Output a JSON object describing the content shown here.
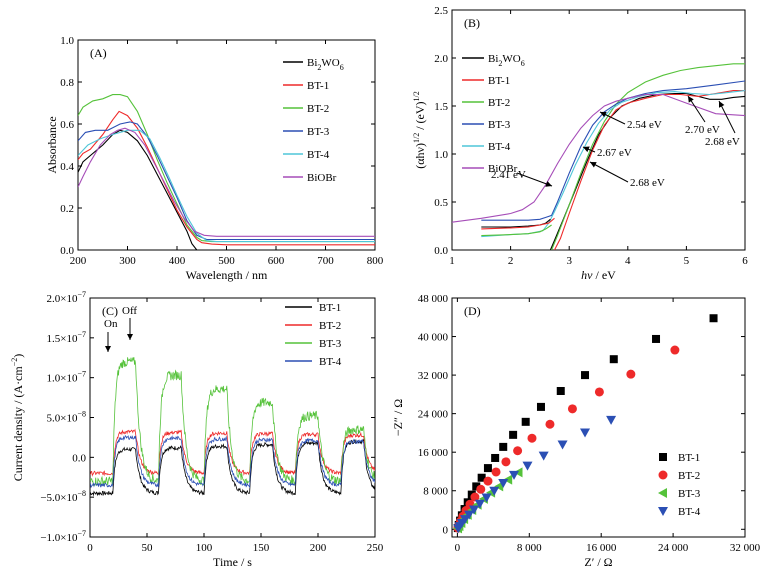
{
  "chart_data": [
    {
      "panel": "(A)",
      "type": "line",
      "xlabel": "Wavelength / nm",
      "ylabel": "Absorbance",
      "xlim": [
        200,
        800
      ],
      "ylim": [
        0,
        1.0
      ],
      "xticks": [
        200,
        300,
        400,
        500,
        600,
        700,
        800
      ],
      "yticks": [
        0,
        0.2,
        0.4,
        0.6,
        0.8,
        1.0
      ],
      "xtick_labels": [
        "200",
        "300",
        "400",
        "500",
        "600",
        "700",
        "800"
      ],
      "ytick_labels": [
        "0.0",
        "0.2",
        "0.4",
        "0.6",
        "0.8",
        "1.0"
      ],
      "legend": "top-right",
      "series": [
        {
          "name": "Bi2WO6",
          "color": "#000000",
          "x": [
            200,
            210,
            225,
            250,
            270,
            285,
            300,
            320,
            340,
            360,
            380,
            400,
            420,
            430,
            440
          ],
          "y": [
            0.37,
            0.42,
            0.45,
            0.5,
            0.55,
            0.57,
            0.56,
            0.52,
            0.45,
            0.36,
            0.27,
            0.18,
            0.09,
            0.03,
            0.0
          ]
        },
        {
          "name": "BT-1",
          "color": "#ee2a2a",
          "x": [
            200,
            210,
            225,
            250,
            270,
            283,
            300,
            320,
            340,
            360,
            380,
            400,
            420,
            440,
            450,
            470,
            500,
            600,
            700,
            800
          ],
          "y": [
            0.43,
            0.46,
            0.48,
            0.55,
            0.62,
            0.66,
            0.64,
            0.58,
            0.49,
            0.39,
            0.29,
            0.19,
            0.11,
            0.05,
            0.035,
            0.028,
            0.025,
            0.025,
            0.025,
            0.025
          ]
        },
        {
          "name": "BT-2",
          "color": "#55c23a",
          "x": [
            200,
            210,
            230,
            250,
            270,
            285,
            300,
            320,
            340,
            360,
            380,
            400,
            420,
            440,
            450,
            470,
            500,
            600,
            700,
            800
          ],
          "y": [
            0.64,
            0.68,
            0.71,
            0.72,
            0.74,
            0.74,
            0.73,
            0.66,
            0.55,
            0.43,
            0.32,
            0.22,
            0.12,
            0.06,
            0.045,
            0.04,
            0.04,
            0.04,
            0.04,
            0.04
          ]
        },
        {
          "name": "BT-3",
          "color": "#2b4fb4",
          "x": [
            200,
            215,
            235,
            260,
            285,
            305,
            320,
            340,
            360,
            380,
            400,
            420,
            440,
            460,
            480,
            500,
            600,
            700,
            800
          ],
          "y": [
            0.52,
            0.56,
            0.57,
            0.57,
            0.6,
            0.61,
            0.6,
            0.54,
            0.45,
            0.35,
            0.25,
            0.14,
            0.07,
            0.05,
            0.05,
            0.05,
            0.05,
            0.05,
            0.05
          ]
        },
        {
          "name": "BT-4",
          "color": "#4fc6d8",
          "x": [
            200,
            220,
            245,
            270,
            300,
            325,
            345,
            365,
            385,
            400,
            420,
            440,
            460,
            480,
            500,
            600,
            700,
            800
          ],
          "y": [
            0.45,
            0.5,
            0.53,
            0.55,
            0.57,
            0.57,
            0.53,
            0.44,
            0.34,
            0.26,
            0.16,
            0.08,
            0.045,
            0.04,
            0.04,
            0.04,
            0.04,
            0.04
          ]
        },
        {
          "name": "BiOBr",
          "color": "#a64db8",
          "x": [
            200,
            210,
            225,
            245,
            265,
            280,
            295,
            315,
            335,
            355,
            375,
            395,
            415,
            435,
            455,
            480,
            500,
            600,
            700,
            800
          ],
          "y": [
            0.3,
            0.35,
            0.42,
            0.5,
            0.55,
            0.57,
            0.58,
            0.56,
            0.5,
            0.41,
            0.32,
            0.23,
            0.15,
            0.09,
            0.07,
            0.065,
            0.065,
            0.065,
            0.065,
            0.065
          ]
        }
      ]
    },
    {
      "panel": "(B)",
      "type": "line",
      "xlabel": "hν / eV",
      "ylabel": "(αhν)1/2 / (eV)1/2",
      "xlim": [
        1,
        6
      ],
      "ylim": [
        0,
        2.5
      ],
      "xticks": [
        1,
        2,
        3,
        4,
        5,
        6
      ],
      "yticks": [
        0,
        0.5,
        1.0,
        1.5,
        2.0,
        2.5
      ],
      "xtick_labels": [
        "1",
        "2",
        "3",
        "4",
        "5",
        "6"
      ],
      "ytick_labels": [
        "0.0",
        "0.5",
        "1.0",
        "1.5",
        "2.0",
        "2.5"
      ],
      "legend": "top-left",
      "series": [
        {
          "name": "Bi2WO6",
          "color": "#000000",
          "x": [
            2.68,
            2.75,
            2.9,
            3.1,
            3.3,
            3.5,
            3.7,
            3.9,
            4.2,
            4.5,
            4.8,
            5.0,
            5.2,
            5.4,
            5.6,
            5.8,
            6.0
          ],
          "y": [
            0.0,
            0.1,
            0.32,
            0.62,
            0.92,
            1.2,
            1.38,
            1.5,
            1.58,
            1.62,
            1.63,
            1.63,
            1.6,
            1.57,
            1.57,
            1.59,
            1.6
          ]
        },
        {
          "name": "BT-1",
          "color": "#ee2a2a",
          "x": [
            2.75,
            2.85,
            3.0,
            3.2,
            3.4,
            3.6,
            3.8,
            4.0,
            4.3,
            4.6,
            4.9,
            5.2,
            5.5,
            5.8,
            6.0
          ],
          "y": [
            0.0,
            0.12,
            0.38,
            0.72,
            1.04,
            1.3,
            1.46,
            1.53,
            1.58,
            1.62,
            1.62,
            1.6,
            1.63,
            1.66,
            1.66
          ]
        },
        {
          "name": "BT-2",
          "color": "#55c23a",
          "x": [
            2.7,
            2.8,
            3.0,
            3.2,
            3.4,
            3.6,
            3.8,
            4.0,
            4.3,
            4.6,
            4.9,
            5.2,
            5.5,
            5.8,
            6.0
          ],
          "y": [
            0.0,
            0.15,
            0.47,
            0.8,
            1.1,
            1.34,
            1.52,
            1.64,
            1.75,
            1.82,
            1.87,
            1.9,
            1.92,
            1.94,
            1.94
          ]
        },
        {
          "name": "BT-3",
          "color": "#2b4fb4",
          "x": [
            1.5,
            2.0,
            2.3,
            2.5,
            2.6,
            2.7,
            2.8,
            3.0,
            3.2,
            3.4,
            3.6,
            3.8,
            4.0,
            4.3,
            4.6,
            5.0,
            5.5,
            6.0
          ],
          "y": [
            0.31,
            0.31,
            0.31,
            0.32,
            0.34,
            0.36,
            0.5,
            0.8,
            1.08,
            1.3,
            1.44,
            1.52,
            1.58,
            1.63,
            1.66,
            1.68,
            1.72,
            1.76
          ]
        },
        {
          "name": "BT-4",
          "color": "#4fc6d8",
          "x": [
            1.5,
            2.0,
            2.3,
            2.55,
            2.65,
            2.75,
            2.9,
            3.1,
            3.3,
            3.5,
            3.7,
            3.9,
            4.2,
            4.5,
            4.8,
            5.1,
            5.4,
            5.7,
            6.0
          ],
          "y": [
            0.14,
            0.16,
            0.17,
            0.2,
            0.28,
            0.4,
            0.6,
            0.88,
            1.12,
            1.32,
            1.46,
            1.54,
            1.6,
            1.64,
            1.65,
            1.63,
            1.62,
            1.64,
            1.66
          ]
        },
        {
          "name": "BiOBr",
          "color": "#a64db8",
          "x": [
            1.0,
            1.5,
            2.0,
            2.2,
            2.4,
            2.6,
            2.8,
            3.0,
            3.2,
            3.4,
            3.6,
            3.8,
            4.0,
            4.3,
            4.6,
            5.0,
            5.5,
            6.0
          ],
          "y": [
            0.29,
            0.33,
            0.38,
            0.42,
            0.5,
            0.68,
            0.9,
            1.1,
            1.27,
            1.4,
            1.5,
            1.55,
            1.58,
            1.62,
            1.62,
            1.53,
            1.42,
            1.4
          ]
        },
        {
          "name": "Bi2WO6 baseline",
          "color": "#000000",
          "x": [
            1.5,
            2.0,
            2.3,
            2.5,
            2.6,
            2.68
          ],
          "y": [
            0.24,
            0.24,
            0.25,
            0.26,
            0.28,
            0.32
          ]
        },
        {
          "name": "BT-1 baseline",
          "color": "#ee2a2a",
          "x": [
            1.5,
            2.0,
            2.3,
            2.5,
            2.65,
            2.75
          ],
          "y": [
            0.22,
            0.23,
            0.24,
            0.26,
            0.28,
            0.33
          ]
        },
        {
          "name": "BT-2 baseline",
          "color": "#55c23a",
          "x": [
            1.5,
            2.0,
            2.3,
            2.5,
            2.6,
            2.7
          ],
          "y": [
            0.15,
            0.16,
            0.17,
            0.19,
            0.22,
            0.26
          ]
        }
      ],
      "annotations": [
        "2.54 eV",
        "2.67 eV",
        "2.68 eV",
        "2.41 eV",
        "2.70 eV",
        "2.68 eV"
      ]
    },
    {
      "panel": "(C)",
      "type": "line",
      "xlabel": "Time / s",
      "ylabel": "Current density / (A·cm−2)",
      "xlim": [
        0,
        250
      ],
      "ylim": [
        -1e-07,
        2e-07
      ],
      "xticks": [
        0,
        50,
        100,
        150,
        200,
        250
      ],
      "yticks": [
        -1e-07,
        -5e-08,
        0,
        5e-08,
        1e-07,
        1.5e-07,
        2e-07
      ],
      "xtick_labels": [
        "0",
        "50",
        "100",
        "150",
        "200",
        "250"
      ],
      "ytick_labels": [
        "−1.0×10−7",
        "−5.0×10−8",
        "0.0",
        "5.0×10−8",
        "1.0×10−7",
        "1.5×10−7",
        "2.0×10−7"
      ],
      "legend": "top-right",
      "annotations": [
        "On",
        "Off"
      ],
      "light_on": [
        20,
        60,
        100,
        140,
        180,
        220
      ],
      "light_off": [
        40,
        80,
        120,
        160,
        200,
        240
      ],
      "series": [
        {
          "name": "BT-1",
          "color": "#000000",
          "dark": -4.5e-08,
          "light_start": 1e-08,
          "light_end": 2e-08
        },
        {
          "name": "BT-2",
          "color": "#ee2a2a",
          "dark": -2e-08,
          "light_start": 3.2e-08,
          "light_end": 2.8e-08
        },
        {
          "name": "BT-3",
          "color": "#55c23a",
          "dark": -3e-08,
          "light_start": 1.2e-07,
          "light_end": 3.5e-08
        },
        {
          "name": "BT-4",
          "color": "#2b4fb4",
          "dark": -3.5e-08,
          "light_start": 2.5e-08,
          "light_end": 2e-08
        }
      ]
    },
    {
      "panel": "(D)",
      "type": "scatter",
      "xlabel": "Z′ / Ω",
      "ylabel": "−Z″ / Ω",
      "xlim": [
        -600,
        32000
      ],
      "ylim": [
        -1600,
        48000
      ],
      "xticks": [
        0,
        8000,
        16000,
        24000,
        32000
      ],
      "yticks": [
        0,
        8000,
        16000,
        24000,
        32000,
        40000,
        48000
      ],
      "xtick_labels": [
        "0",
        "8 000",
        "16 000",
        "24 000",
        "32 000"
      ],
      "ytick_labels": [
        "0",
        "8 000",
        "16 000",
        "24 000",
        "32 000",
        "40 000",
        "48 000"
      ],
      "legend": "bottom-right",
      "series": [
        {
          "name": "BT-1",
          "color": "#000000",
          "marker": "square",
          "x": [
            50,
            150,
            300,
            500,
            800,
            1150,
            1600,
            2100,
            2700,
            3400,
            4200,
            5100,
            6200,
            7600,
            9300,
            11500,
            14200,
            17400,
            22100,
            28500
          ],
          "y": [
            250,
            900,
            1800,
            2900,
            4200,
            5600,
            7200,
            8900,
            10700,
            12700,
            14800,
            17100,
            19600,
            22300,
            25400,
            28700,
            32000,
            35300,
            39500,
            43800
          ]
        },
        {
          "name": "BT-2",
          "color": "#ee2a2a",
          "marker": "circle",
          "x": [
            60,
            180,
            360,
            600,
            950,
            1400,
            1950,
            2600,
            3400,
            4300,
            5400,
            6700,
            8300,
            10300,
            12800,
            15800,
            19300,
            24200
          ],
          "y": [
            250,
            850,
            1700,
            2700,
            3900,
            5200,
            6700,
            8300,
            10000,
            11900,
            14000,
            16300,
            18900,
            21800,
            25000,
            28500,
            32200,
            37200
          ]
        },
        {
          "name": "BT-3",
          "color": "#55c23a",
          "marker": "triangle-left",
          "x": [
            70,
            220,
            440,
            750,
            1150,
            1650,
            2250,
            2950,
            3750,
            4650,
            5650,
            6800
          ],
          "y": [
            200,
            650,
            1300,
            2100,
            3000,
            4000,
            5100,
            6300,
            7600,
            8900,
            10300,
            11800
          ]
        },
        {
          "name": "BT-4",
          "color": "#2b4fb4",
          "marker": "triangle-down",
          "x": [
            80,
            250,
            500,
            850,
            1300,
            1850,
            2500,
            3250,
            4100,
            5100,
            6300,
            7800,
            9600,
            11700,
            14200,
            17100
          ],
          "y": [
            200,
            650,
            1300,
            2100,
            3050,
            4100,
            5300,
            6600,
            8000,
            9600,
            11300,
            13200,
            15300,
            17600,
            20100,
            22700
          ]
        }
      ]
    }
  ],
  "legend_labels": {
    "bi2wo6_base": "Bi",
    "bi2wo6_sub1": "2",
    "bi2wo6_mid": "WO",
    "bi2wo6_sub2": "6"
  }
}
